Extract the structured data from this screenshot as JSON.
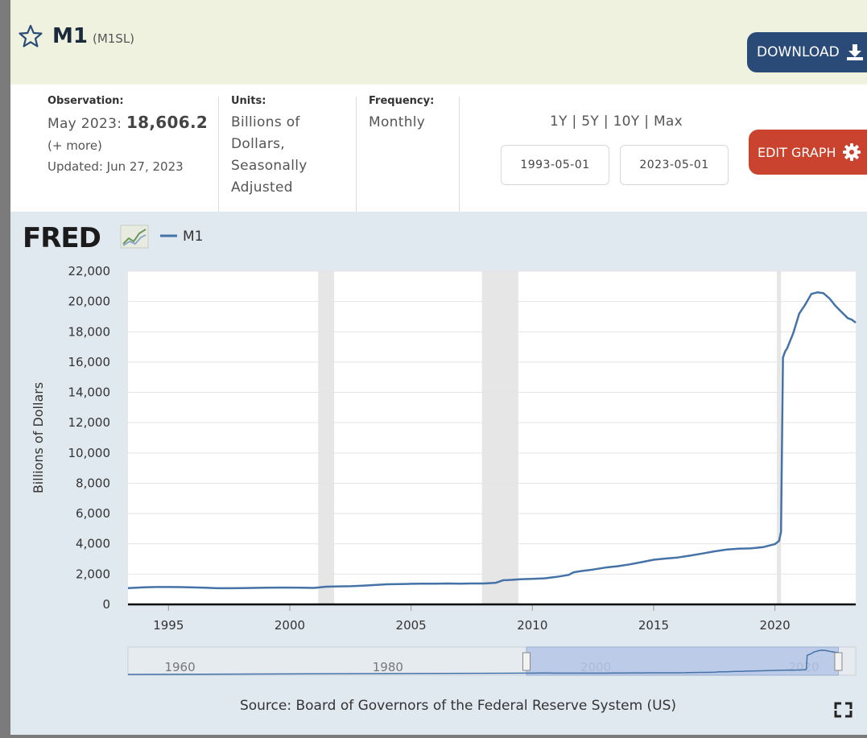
{
  "header": {
    "title": "M1",
    "series_id": "(M1SL)",
    "download_label": "DOWNLOAD"
  },
  "meta": {
    "observation_label": "Observation:",
    "observation_date": "May 2023:",
    "observation_value": "18,606.2",
    "more_link": "(+ more)",
    "updated": "Updated: Jun 27, 2023",
    "units_label": "Units:",
    "units_lines": [
      "Billions of",
      "Dollars,",
      "Seasonally",
      "Adjusted"
    ],
    "frequency_label": "Frequency:",
    "frequency": "Monthly"
  },
  "range": {
    "links": [
      "1Y",
      "5Y",
      "10Y",
      "Max"
    ],
    "separator": "|",
    "start_date": "1993-05-01",
    "end_date": "2023-05-01"
  },
  "edit_label": "EDIT GRAPH",
  "chart_data": {
    "type": "line",
    "brand": "FRED",
    "legend": [
      "M1"
    ],
    "ylabel": "Billions of Dollars",
    "ylim": [
      0,
      22000
    ],
    "yticks": [
      0,
      2000,
      4000,
      6000,
      8000,
      10000,
      12000,
      14000,
      16000,
      18000,
      20000,
      22000
    ],
    "ytick_labels": [
      "0",
      "2,000",
      "4,000",
      "6,000",
      "8,000",
      "10,000",
      "12,000",
      "14,000",
      "16,000",
      "18,000",
      "20,000",
      "22,000"
    ],
    "xlim": [
      1993.33,
      2023.33
    ],
    "xticks": [
      1995,
      2000,
      2005,
      2010,
      2015,
      2020
    ],
    "recessions": [
      [
        2001.17,
        2001.83
      ],
      [
        2007.92,
        2009.42
      ],
      [
        2020.08,
        2020.25
      ]
    ],
    "line_color": "#4572a7",
    "series": [
      {
        "name": "M1",
        "x": [
          1993.33,
          1994.0,
          1994.5,
          1995.0,
          1995.5,
          1996.0,
          1996.5,
          1997.0,
          1997.5,
          1998.0,
          1998.5,
          1999.0,
          1999.5,
          2000.0,
          2000.5,
          2001.0,
          2001.5,
          2002.0,
          2002.5,
          2003.0,
          2003.5,
          2004.0,
          2004.5,
          2005.0,
          2005.5,
          2006.0,
          2006.5,
          2007.0,
          2007.5,
          2008.0,
          2008.5,
          2008.8,
          2009.0,
          2009.5,
          2010.0,
          2010.5,
          2011.0,
          2011.5,
          2011.7,
          2012.0,
          2012.5,
          2013.0,
          2013.5,
          2014.0,
          2014.5,
          2015.0,
          2015.5,
          2016.0,
          2016.5,
          2017.0,
          2017.5,
          2018.0,
          2018.5,
          2019.0,
          2019.5,
          2020.0,
          2020.17,
          2020.25,
          2020.33,
          2020.42,
          2020.5,
          2020.75,
          2021.0,
          2021.25,
          2021.5,
          2021.75,
          2022.0,
          2022.25,
          2022.5,
          2022.75,
          2023.0,
          2023.17,
          2023.33
        ],
        "y": [
          1080,
          1130,
          1150,
          1150,
          1140,
          1120,
          1100,
          1070,
          1070,
          1080,
          1090,
          1100,
          1110,
          1110,
          1100,
          1090,
          1170,
          1190,
          1200,
          1240,
          1280,
          1330,
          1340,
          1360,
          1370,
          1370,
          1380,
          1370,
          1380,
          1380,
          1430,
          1600,
          1610,
          1660,
          1690,
          1720,
          1820,
          1950,
          2120,
          2200,
          2300,
          2430,
          2520,
          2640,
          2790,
          2950,
          3030,
          3100,
          3220,
          3360,
          3500,
          3620,
          3680,
          3700,
          3780,
          3980,
          4200,
          4800,
          16300,
          16700,
          16900,
          17900,
          19200,
          19800,
          20500,
          20600,
          20550,
          20200,
          19700,
          19300,
          18900,
          18800,
          18606
        ]
      }
    ],
    "navigator": {
      "xticks": [
        1960,
        1980,
        2000,
        2020
      ],
      "xlim": [
        1955,
        2025
      ],
      "selection": [
        1993.33,
        2023.33
      ]
    },
    "source": "Source: Board of Governors of the Federal Reserve System (US)"
  }
}
